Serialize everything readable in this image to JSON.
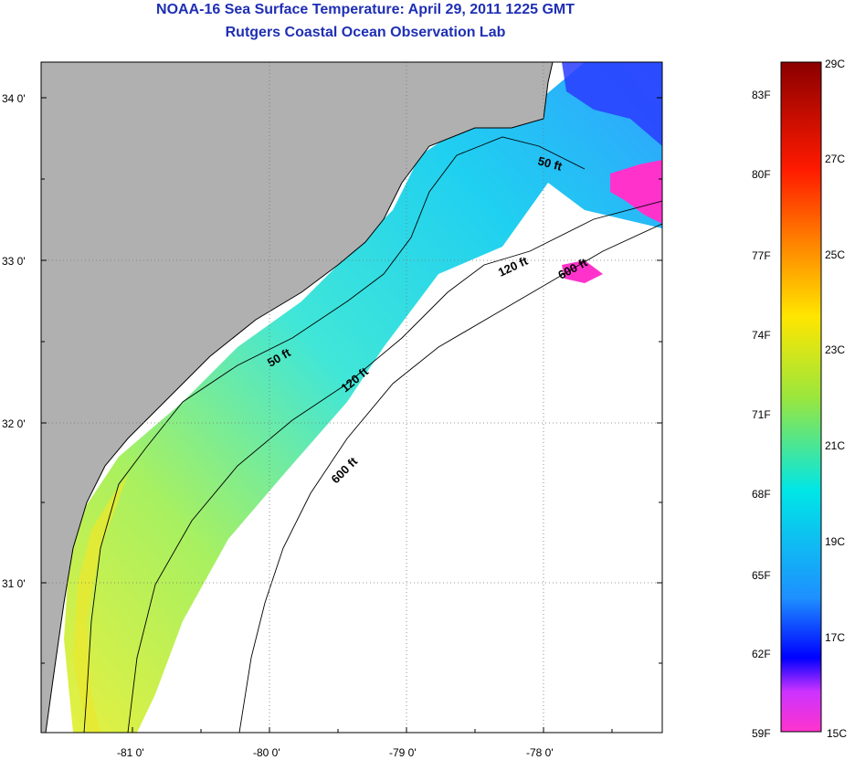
{
  "header": {
    "title": "NOAA-16 Sea Surface Temperature:  April 29, 2011 1225 GMT",
    "subtitle": "Rutgers Coastal Ocean Observation Lab"
  },
  "axes": {
    "lat_labels": [
      "34 0'",
      "33 0'",
      "32 0'",
      "31 0'"
    ],
    "lon_labels": [
      "-81 0'",
      "-80 0'",
      "-79 0'",
      "-78 0'"
    ]
  },
  "contours": {
    "c50_north": "50 ft",
    "c50_south": "50 ft",
    "c120_north": "120 ft",
    "c120_south": "120 ft",
    "c600_north": "600 ft",
    "c600_south": "600 ft"
  },
  "colorbar": {
    "fahrenheit_labels": [
      "83F",
      "80F",
      "77F",
      "74F",
      "71F",
      "68F",
      "65F",
      "62F",
      "59F"
    ],
    "celsius_labels": [
      "29C",
      "27C",
      "25C",
      "23C",
      "21C",
      "19C",
      "17C",
      "15C"
    ],
    "colors": [
      "#8b0000",
      "#ff1a00",
      "#ff8c00",
      "#ffe600",
      "#9be63c",
      "#00e6e6",
      "#1e90ff",
      "#0000ff",
      "#ff33cc"
    ]
  },
  "palette": {
    "land": "#b0b0b0",
    "ocean_cloud": "#ffffff",
    "sst_warm": "#d8f040",
    "sst_mid": "#7ef07a",
    "sst_cool": "#20d8f0",
    "sst_cold": "#2050ff",
    "sst_magenta": "#ff33cc"
  }
}
